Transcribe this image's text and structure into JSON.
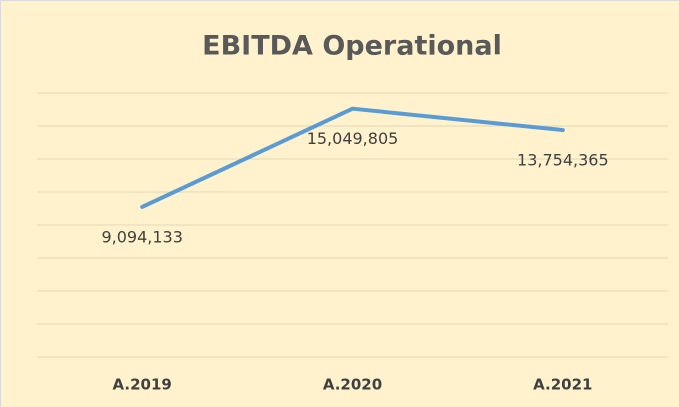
{
  "chart_data": {
    "type": "line",
    "title": "EBITDA Operational",
    "categories": [
      "A.2019",
      "A.2020",
      "A.2021"
    ],
    "series": [
      {
        "name": "EBITDA Operational",
        "color": "#5b9bd5",
        "values": [
          9094133,
          15049805,
          13754365
        ],
        "value_labels": [
          "9,094,133",
          "15,049,805",
          "13,754,365"
        ]
      }
    ],
    "ylim": [
      0,
      16000000
    ],
    "yticks": [
      0,
      2000000,
      4000000,
      6000000,
      8000000,
      10000000,
      12000000,
      14000000,
      16000000
    ],
    "grid": true
  }
}
